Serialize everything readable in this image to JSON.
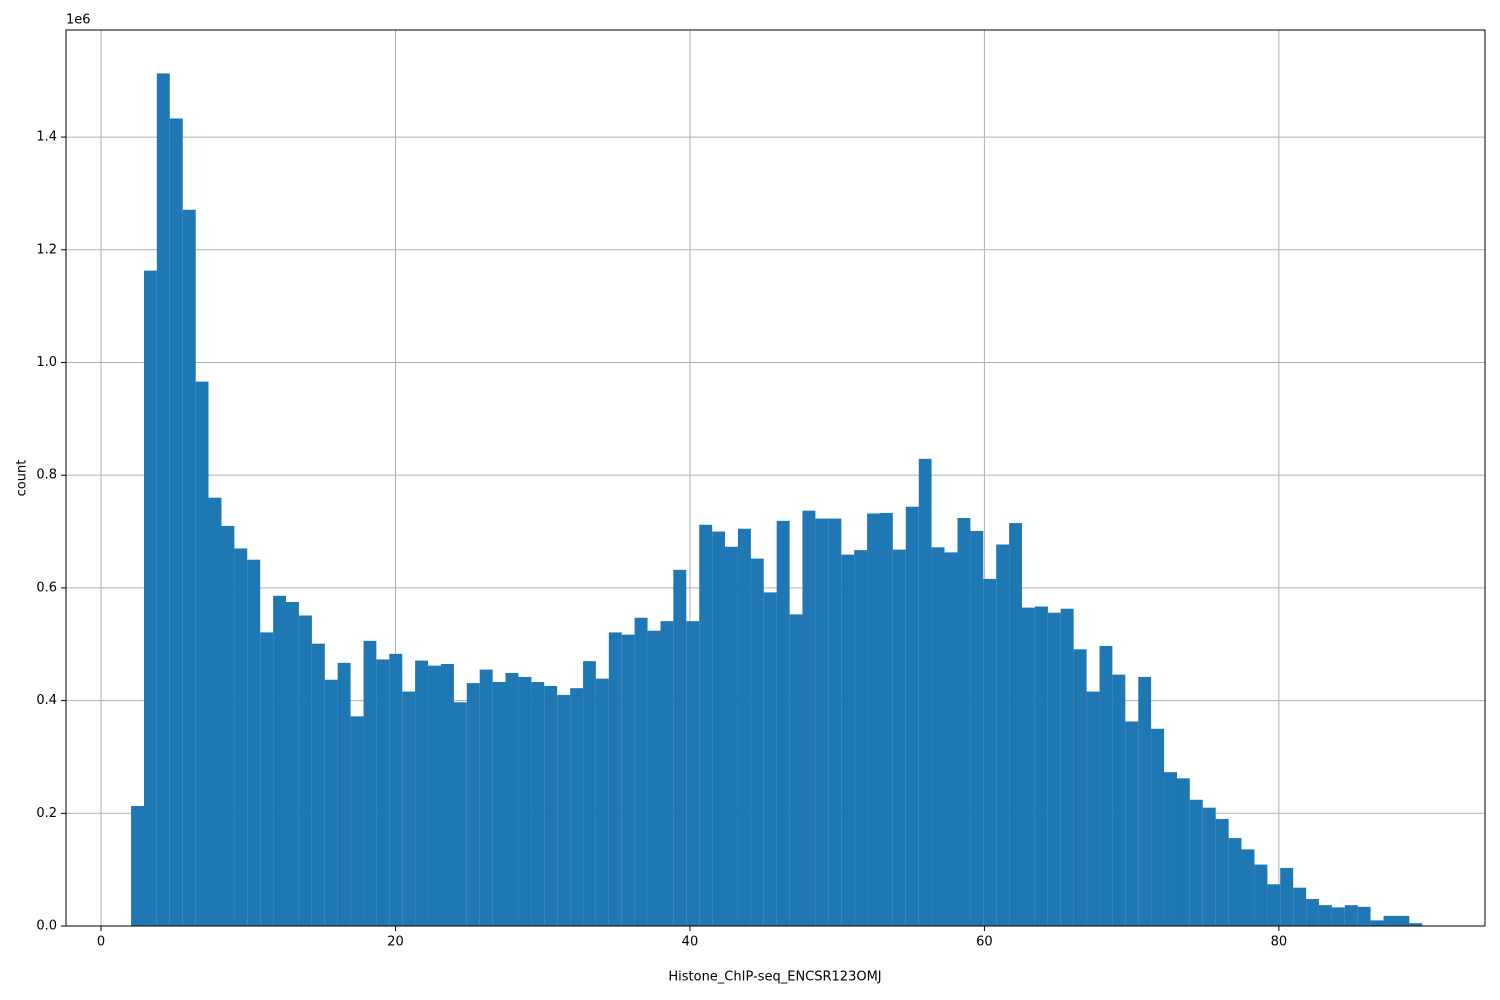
{
  "chart_data": {
    "type": "histogram",
    "xlabel": "Histone_ChIP-seq_ENCSR123OMJ",
    "ylabel": "count",
    "y_offset_label": "1e6",
    "color": "#1f77b4",
    "grid": true,
    "xlim": [
      -2.38,
      94.0
    ],
    "ylim": [
      0,
      1.59
    ],
    "xticks": [
      0,
      20,
      40,
      60,
      80
    ],
    "yticks": [
      {
        "value": 0,
        "label": "0.0"
      },
      {
        "value": 0.2,
        "label": "0.2"
      },
      {
        "value": 0.4,
        "label": "0.4"
      },
      {
        "value": 0.6,
        "label": "0.6"
      },
      {
        "value": 0.8,
        "label": "0.8"
      },
      {
        "value": 1.0,
        "label": "1.0"
      },
      {
        "value": 1.2,
        "label": "1.2"
      },
      {
        "value": 1.4,
        "label": "1.4"
      }
    ],
    "bins": [
      2.04,
      2.92,
      3.79,
      4.67,
      5.55,
      6.43,
      7.3,
      8.18,
      9.06,
      9.93,
      10.81,
      11.69,
      12.56,
      13.44,
      14.32,
      15.2,
      16.07,
      16.95,
      17.83,
      18.7,
      19.58,
      20.46,
      21.33,
      22.21,
      23.09,
      23.97,
      24.84,
      25.72,
      26.6,
      27.47,
      28.35,
      29.23,
      30.1,
      30.98,
      31.86,
      32.74,
      33.61,
      34.49,
      35.37,
      36.24,
      37.12,
      38.0,
      38.87,
      39.75,
      40.63,
      41.51,
      42.38,
      43.26,
      44.14,
      45.01,
      45.89,
      46.77,
      47.64,
      48.52,
      49.4,
      50.28,
      51.15,
      52.03,
      52.91,
      53.78,
      54.66,
      55.54,
      56.41,
      57.29,
      58.17,
      59.05,
      59.92,
      60.8,
      61.68,
      62.55,
      63.43,
      64.31,
      65.18,
      66.06,
      66.94,
      67.82,
      68.69,
      69.57,
      70.45,
      71.32,
      72.2,
      73.08,
      73.95,
      74.83,
      75.71,
      76.59,
      77.46,
      78.34,
      79.22,
      80.09,
      80.97,
      81.85,
      82.72,
      83.6,
      84.48,
      85.36,
      86.23,
      87.11,
      87.99,
      88.86,
      89.74
    ],
    "values": [
      0.213,
      1.163,
      1.513,
      1.433,
      1.271,
      0.966,
      0.76,
      0.71,
      0.67,
      0.65,
      0.521,
      0.586,
      0.575,
      0.551,
      0.501,
      0.437,
      0.467,
      0.372,
      0.506,
      0.473,
      0.483,
      0.416,
      0.471,
      0.462,
      0.465,
      0.397,
      0.431,
      0.455,
      0.433,
      0.449,
      0.442,
      0.433,
      0.426,
      0.41,
      0.422,
      0.47,
      0.439,
      0.521,
      0.517,
      0.547,
      0.524,
      0.541,
      0.632,
      0.541,
      0.712,
      0.7,
      0.673,
      0.705,
      0.652,
      0.592,
      0.719,
      0.553,
      0.737,
      0.723,
      0.723,
      0.659,
      0.667,
      0.732,
      0.733,
      0.668,
      0.744,
      0.829,
      0.672,
      0.663,
      0.724,
      0.701,
      0.616,
      0.677,
      0.715,
      0.565,
      0.567,
      0.556,
      0.563,
      0.491,
      0.416,
      0.497,
      0.446,
      0.363,
      0.442,
      0.35,
      0.273,
      0.262,
      0.224,
      0.21,
      0.19,
      0.156,
      0.136,
      0.109,
      0.074,
      0.103,
      0.068,
      0.048,
      0.037,
      0.033,
      0.037,
      0.034,
      0.01,
      0.018,
      0.018,
      0.005
    ]
  }
}
